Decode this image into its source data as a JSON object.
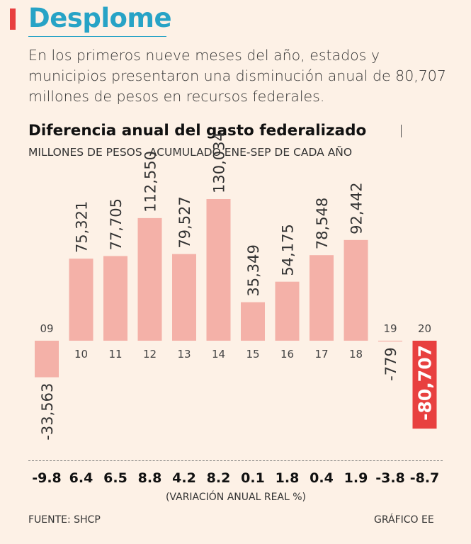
{
  "header": {
    "title": "Desplome",
    "subtitle": "En los primeros nueve meses del año, estados y municipios presentaron una disminución anual de 80,707 millones de pesos en recursos federales."
  },
  "chart_data": {
    "type": "bar",
    "title": "Diferencia anual del gasto federalizado",
    "ylabel": "MILLONES DE PESOS -ACUMULADO ENE-SEP DE CADA AÑO",
    "categories": [
      "09",
      "10",
      "11",
      "12",
      "13",
      "14",
      "15",
      "16",
      "17",
      "18",
      "19",
      "20"
    ],
    "values": [
      -33563,
      75321,
      77705,
      112550,
      79527,
      130034,
      35349,
      54175,
      78548,
      92442,
      -779,
      -80707
    ],
    "value_labels": [
      "-33,563",
      "75,321",
      "77,705",
      "112,550",
      "79,527",
      "130,034",
      "35,349",
      "54,175",
      "78,548",
      "92,442",
      "-779",
      "-80,707"
    ],
    "variation": [
      "-9.8",
      "6.4",
      "6.5",
      "8.8",
      "4.2",
      "8.2",
      "0.1",
      "1.8",
      "0.4",
      "1.9",
      "-3.8",
      "-8.7"
    ],
    "variation_label": "(VARIACIÓN ANUAL REAL %)",
    "highlight_index": 11,
    "colors": {
      "bar": "#f4b1a8",
      "highlight": "#e8403f",
      "highlight_text": "#ffffff"
    }
  },
  "footer": {
    "source": "FUENTE: SHCP",
    "credit": "GRÁFICO EE"
  }
}
